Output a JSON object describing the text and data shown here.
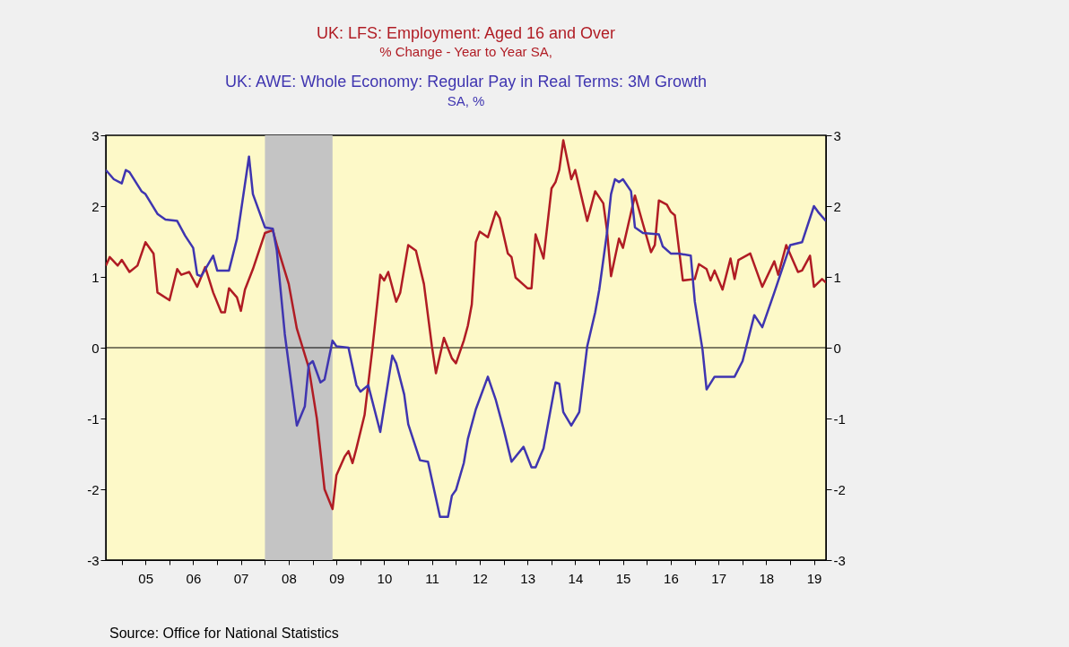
{
  "chart_data": {
    "type": "line",
    "xlim": [
      "2004-09",
      "2019-10"
    ],
    "xticks": [
      {
        "value": "2005",
        "label": null
      },
      {
        "value": "2005-07",
        "label": "05"
      },
      {
        "value": "2006",
        "label": null
      },
      {
        "value": "2006-07",
        "label": "06"
      },
      {
        "value": "2007",
        "label": null
      },
      {
        "value": "2007-07",
        "label": "07"
      },
      {
        "value": "2008",
        "label": null
      },
      {
        "value": "2008-07",
        "label": "08"
      },
      {
        "value": "2009",
        "label": null
      },
      {
        "value": "2009-07",
        "label": "09"
      },
      {
        "value": "2010",
        "label": null
      },
      {
        "value": "2010-07",
        "label": "10"
      },
      {
        "value": "2011",
        "label": null
      },
      {
        "value": "2011-07",
        "label": "11"
      },
      {
        "value": "2012",
        "label": null
      },
      {
        "value": "2012-07",
        "label": "12"
      },
      {
        "value": "2013",
        "label": null
      },
      {
        "value": "2013-07",
        "label": "13"
      },
      {
        "value": "2014",
        "label": null
      },
      {
        "value": "2014-07",
        "label": "14"
      },
      {
        "value": "2015",
        "label": null
      },
      {
        "value": "2015-07",
        "label": "15"
      },
      {
        "value": "2016",
        "label": null
      },
      {
        "value": "2016-07",
        "label": "16"
      },
      {
        "value": "2017",
        "label": null
      },
      {
        "value": "2017-07",
        "label": "17"
      },
      {
        "value": "2018",
        "label": null
      },
      {
        "value": "2018-07",
        "label": "18"
      },
      {
        "value": "2019",
        "label": null
      },
      {
        "value": "2019-07",
        "label": "19"
      }
    ],
    "ylim": [
      -3,
      3
    ],
    "yticks": [
      -3,
      -2,
      -1,
      0,
      1,
      2,
      3
    ],
    "y2lim": [
      -3,
      3
    ],
    "y2ticks": [
      -3,
      -2,
      -1,
      0,
      1,
      2,
      3
    ],
    "marker": "none",
    "line_style": "solid",
    "ref_lines": [
      {
        "axis": "y",
        "value": 0,
        "color": "#000000"
      }
    ],
    "bands": [
      {
        "axis": "x",
        "from": "2008-01",
        "to": "2009-06",
        "color": "#c4c4c4"
      }
    ],
    "annotations": [
      "% Change - Year to Year    SA,",
      "SA, %",
      "Source:  Office for National Statistics"
    ],
    "series": [
      {
        "name": "UK: LFS: Employment: Aged 16 and Over",
        "color": "#b01c24",
        "x": [
          "2004-09",
          "2004-10",
          "2004-12",
          "2005-01",
          "2005-03",
          "2005-05",
          "2005-07",
          "2005-09",
          "2005-10",
          "2006-01",
          "2006-03",
          "2006-04",
          "2006-06",
          "2006-08",
          "2006-10",
          "2006-12",
          "2007-02",
          "2007-03",
          "2007-04",
          "2007-06",
          "2007-07",
          "2007-08",
          "2007-10",
          "2008-01",
          "2008-03",
          "2008-04",
          "2008-07",
          "2008-09",
          "2008-12",
          "2009-02",
          "2009-04",
          "2009-06",
          "2009-07",
          "2009-09",
          "2009-10",
          "2009-11",
          "2009-12",
          "2010-02",
          "2010-04",
          "2010-06",
          "2010-07",
          "2010-08",
          "2010-10",
          "2010-11",
          "2011-01",
          "2011-03",
          "2011-05",
          "2011-07",
          "2011-08",
          "2011-10",
          "2011-12",
          "2012-01",
          "2012-03",
          "2012-04",
          "2012-05",
          "2012-06",
          "2012-07",
          "2012-09",
          "2012-11",
          "2012-12",
          "2013-02",
          "2013-03",
          "2013-04",
          "2013-07",
          "2013-08",
          "2013-09",
          "2013-11",
          "2014-01",
          "2014-02",
          "2014-03",
          "2014-04",
          "2014-06",
          "2014-07",
          "2014-10",
          "2014-12",
          "2015-02",
          "2015-03",
          "2015-04",
          "2015-06",
          "2015-07",
          "2015-10",
          "2015-12",
          "2016-02",
          "2016-03",
          "2016-04",
          "2016-06",
          "2016-07",
          "2016-08",
          "2016-10",
          "2017-01",
          "2017-02",
          "2017-04",
          "2017-05",
          "2017-06",
          "2017-08",
          "2017-10",
          "2017-11",
          "2017-12",
          "2018-03",
          "2018-06",
          "2018-09",
          "2018-10",
          "2018-12",
          "2019-03",
          "2019-04",
          "2019-06",
          "2019-07",
          "2019-09",
          "2019-10"
        ],
        "values": [
          1.16,
          1.28,
          1.16,
          1.24,
          1.07,
          1.16,
          1.49,
          1.33,
          0.78,
          0.67,
          1.11,
          1.03,
          1.07,
          0.86,
          1.14,
          0.78,
          0.5,
          0.5,
          0.84,
          0.71,
          0.52,
          0.82,
          1.11,
          1.62,
          1.66,
          1.45,
          0.9,
          0.27,
          -0.28,
          -1.0,
          -2.0,
          -2.28,
          -1.8,
          -1.54,
          -1.46,
          -1.63,
          -1.42,
          -0.95,
          -0.03,
          1.03,
          0.95,
          1.07,
          0.65,
          0.78,
          1.45,
          1.37,
          0.9,
          0.02,
          -0.36,
          0.14,
          -0.15,
          -0.22,
          0.1,
          0.31,
          0.61,
          1.49,
          1.64,
          1.56,
          1.92,
          1.83,
          1.33,
          1.28,
          0.99,
          0.84,
          0.84,
          1.6,
          1.26,
          2.25,
          2.34,
          2.51,
          2.93,
          2.38,
          2.51,
          1.79,
          2.21,
          2.04,
          1.66,
          1.01,
          1.54,
          1.41,
          2.15,
          1.75,
          1.35,
          1.45,
          2.08,
          2.02,
          1.92,
          1.87,
          0.95,
          0.97,
          1.18,
          1.11,
          0.95,
          1.09,
          0.82,
          1.26,
          0.97,
          1.24,
          1.33,
          0.86,
          1.22,
          1.03,
          1.45,
          1.07,
          1.09,
          1.3,
          0.86,
          0.97,
          0.92
        ]
      },
      {
        "name": "UK: AWE: Whole Economy: Regular Pay in Real Terms: 3M Growth",
        "color": "#3f35b0",
        "x": [
          "2004-09",
          "2004-11",
          "2005-01",
          "2005-02",
          "2005-03",
          "2005-06",
          "2005-07",
          "2005-10",
          "2005-12",
          "2006-03",
          "2006-05",
          "2006-07",
          "2006-08",
          "2006-09",
          "2006-12",
          "2007-01",
          "2007-04",
          "2007-06",
          "2007-09",
          "2007-10",
          "2008-01",
          "2008-03",
          "2008-04",
          "2008-06",
          "2008-09",
          "2008-11",
          "2008-12",
          "2009-01",
          "2009-03",
          "2009-04",
          "2009-06",
          "2009-07",
          "2009-10",
          "2009-12",
          "2010-01",
          "2010-03",
          "2010-06",
          "2010-09",
          "2010-10",
          "2010-12",
          "2011-01",
          "2011-04",
          "2011-06",
          "2011-09",
          "2011-11",
          "2011-12",
          "2012-01",
          "2012-03",
          "2012-04",
          "2012-06",
          "2012-09",
          "2012-11",
          "2013-01",
          "2013-03",
          "2013-06",
          "2013-08",
          "2013-09",
          "2013-11",
          "2014-02",
          "2014-03",
          "2014-04",
          "2014-06",
          "2014-08",
          "2014-10",
          "2014-12",
          "2015-01",
          "2015-03",
          "2015-04",
          "2015-05",
          "2015-06",
          "2015-07",
          "2015-09",
          "2015-10",
          "2015-12",
          "2016-04",
          "2016-05",
          "2016-07",
          "2016-09",
          "2016-12",
          "2017-01",
          "2017-03",
          "2017-04",
          "2017-06",
          "2017-11",
          "2018-01",
          "2018-04",
          "2018-06",
          "2018-09",
          "2019-01",
          "2019-04",
          "2019-07",
          "2019-08",
          "2019-10"
        ],
        "values": [
          2.51,
          2.38,
          2.32,
          2.51,
          2.48,
          2.21,
          2.17,
          1.89,
          1.81,
          1.79,
          1.58,
          1.41,
          1.03,
          1.01,
          1.3,
          1.09,
          1.09,
          1.54,
          2.7,
          2.17,
          1.7,
          1.68,
          1.37,
          0.19,
          -1.1,
          -0.83,
          -0.24,
          -0.19,
          -0.49,
          -0.45,
          0.1,
          0.02,
          0.0,
          -0.53,
          -0.62,
          -0.53,
          -1.19,
          -0.11,
          -0.22,
          -0.66,
          -1.08,
          -1.59,
          -1.61,
          -2.39,
          -2.39,
          -2.09,
          -2.01,
          -1.63,
          -1.29,
          -0.87,
          -0.41,
          -0.74,
          -1.16,
          -1.61,
          -1.4,
          -1.69,
          -1.69,
          -1.42,
          -0.49,
          -0.51,
          -0.91,
          -1.1,
          -0.91,
          0.02,
          0.5,
          0.82,
          1.62,
          2.17,
          2.38,
          2.34,
          2.38,
          2.21,
          1.7,
          1.62,
          1.6,
          1.43,
          1.33,
          1.33,
          1.3,
          0.65,
          -0.03,
          -0.59,
          -0.41,
          -0.41,
          -0.19,
          0.46,
          0.29,
          0.78,
          1.45,
          1.49,
          2.0,
          1.92,
          1.79
        ]
      }
    ]
  }
}
